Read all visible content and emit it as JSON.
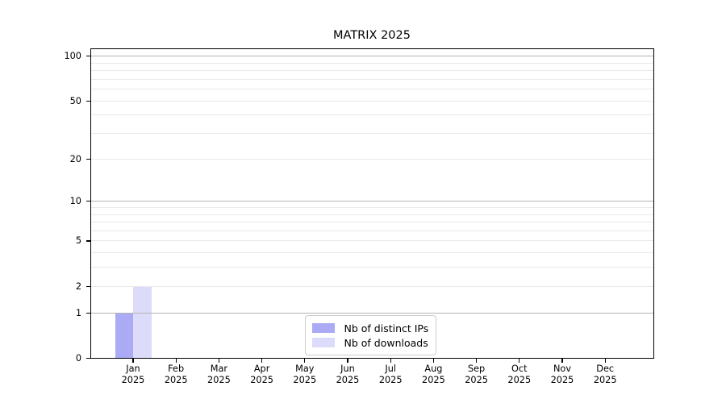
{
  "page": {
    "background": "#ffffff"
  },
  "chart_data": {
    "type": "bar",
    "title": "MATRIX 2025",
    "x_tick_year": "2025",
    "categories": [
      "Jan",
      "Feb",
      "Mar",
      "Apr",
      "May",
      "Jun",
      "Jul",
      "Aug",
      "Sep",
      "Oct",
      "Nov",
      "Dec"
    ],
    "series": [
      {
        "name": "Nb of distinct IPs",
        "color": "#aaaaf5",
        "values": [
          1,
          0,
          0,
          0,
          0,
          0,
          0,
          0,
          0,
          0,
          0,
          0
        ]
      },
      {
        "name": "Nb of downloads",
        "color": "#dcdcfa",
        "values": [
          2,
          0,
          0,
          0,
          0,
          0,
          0,
          0,
          0,
          0,
          0,
          0
        ]
      }
    ],
    "y_axis": {
      "scale": "log10(1+y)",
      "tick_values": [
        0,
        1,
        2,
        5,
        10,
        20,
        50,
        100
      ],
      "major_grid_values": [
        1,
        10,
        100
      ],
      "minor_grid_values": [
        2,
        3,
        4,
        5,
        6,
        7,
        8,
        9,
        20,
        30,
        40,
        50,
        60,
        70,
        80,
        90
      ],
      "ylim": [
        0,
        113
      ],
      "grid": "on"
    },
    "x_axis": {
      "grid": "off"
    },
    "legend": {
      "position": "inside-bottom-center"
    },
    "colors": {
      "bar_distinct_ips": "#aaaaf5",
      "bar_downloads": "#dcdcfa",
      "major_grid": "#b4b4b4",
      "minor_grid": "#e9e9e9",
      "axis": "#000000",
      "legend_border": "#cccccc",
      "background": "#ffffff"
    }
  }
}
